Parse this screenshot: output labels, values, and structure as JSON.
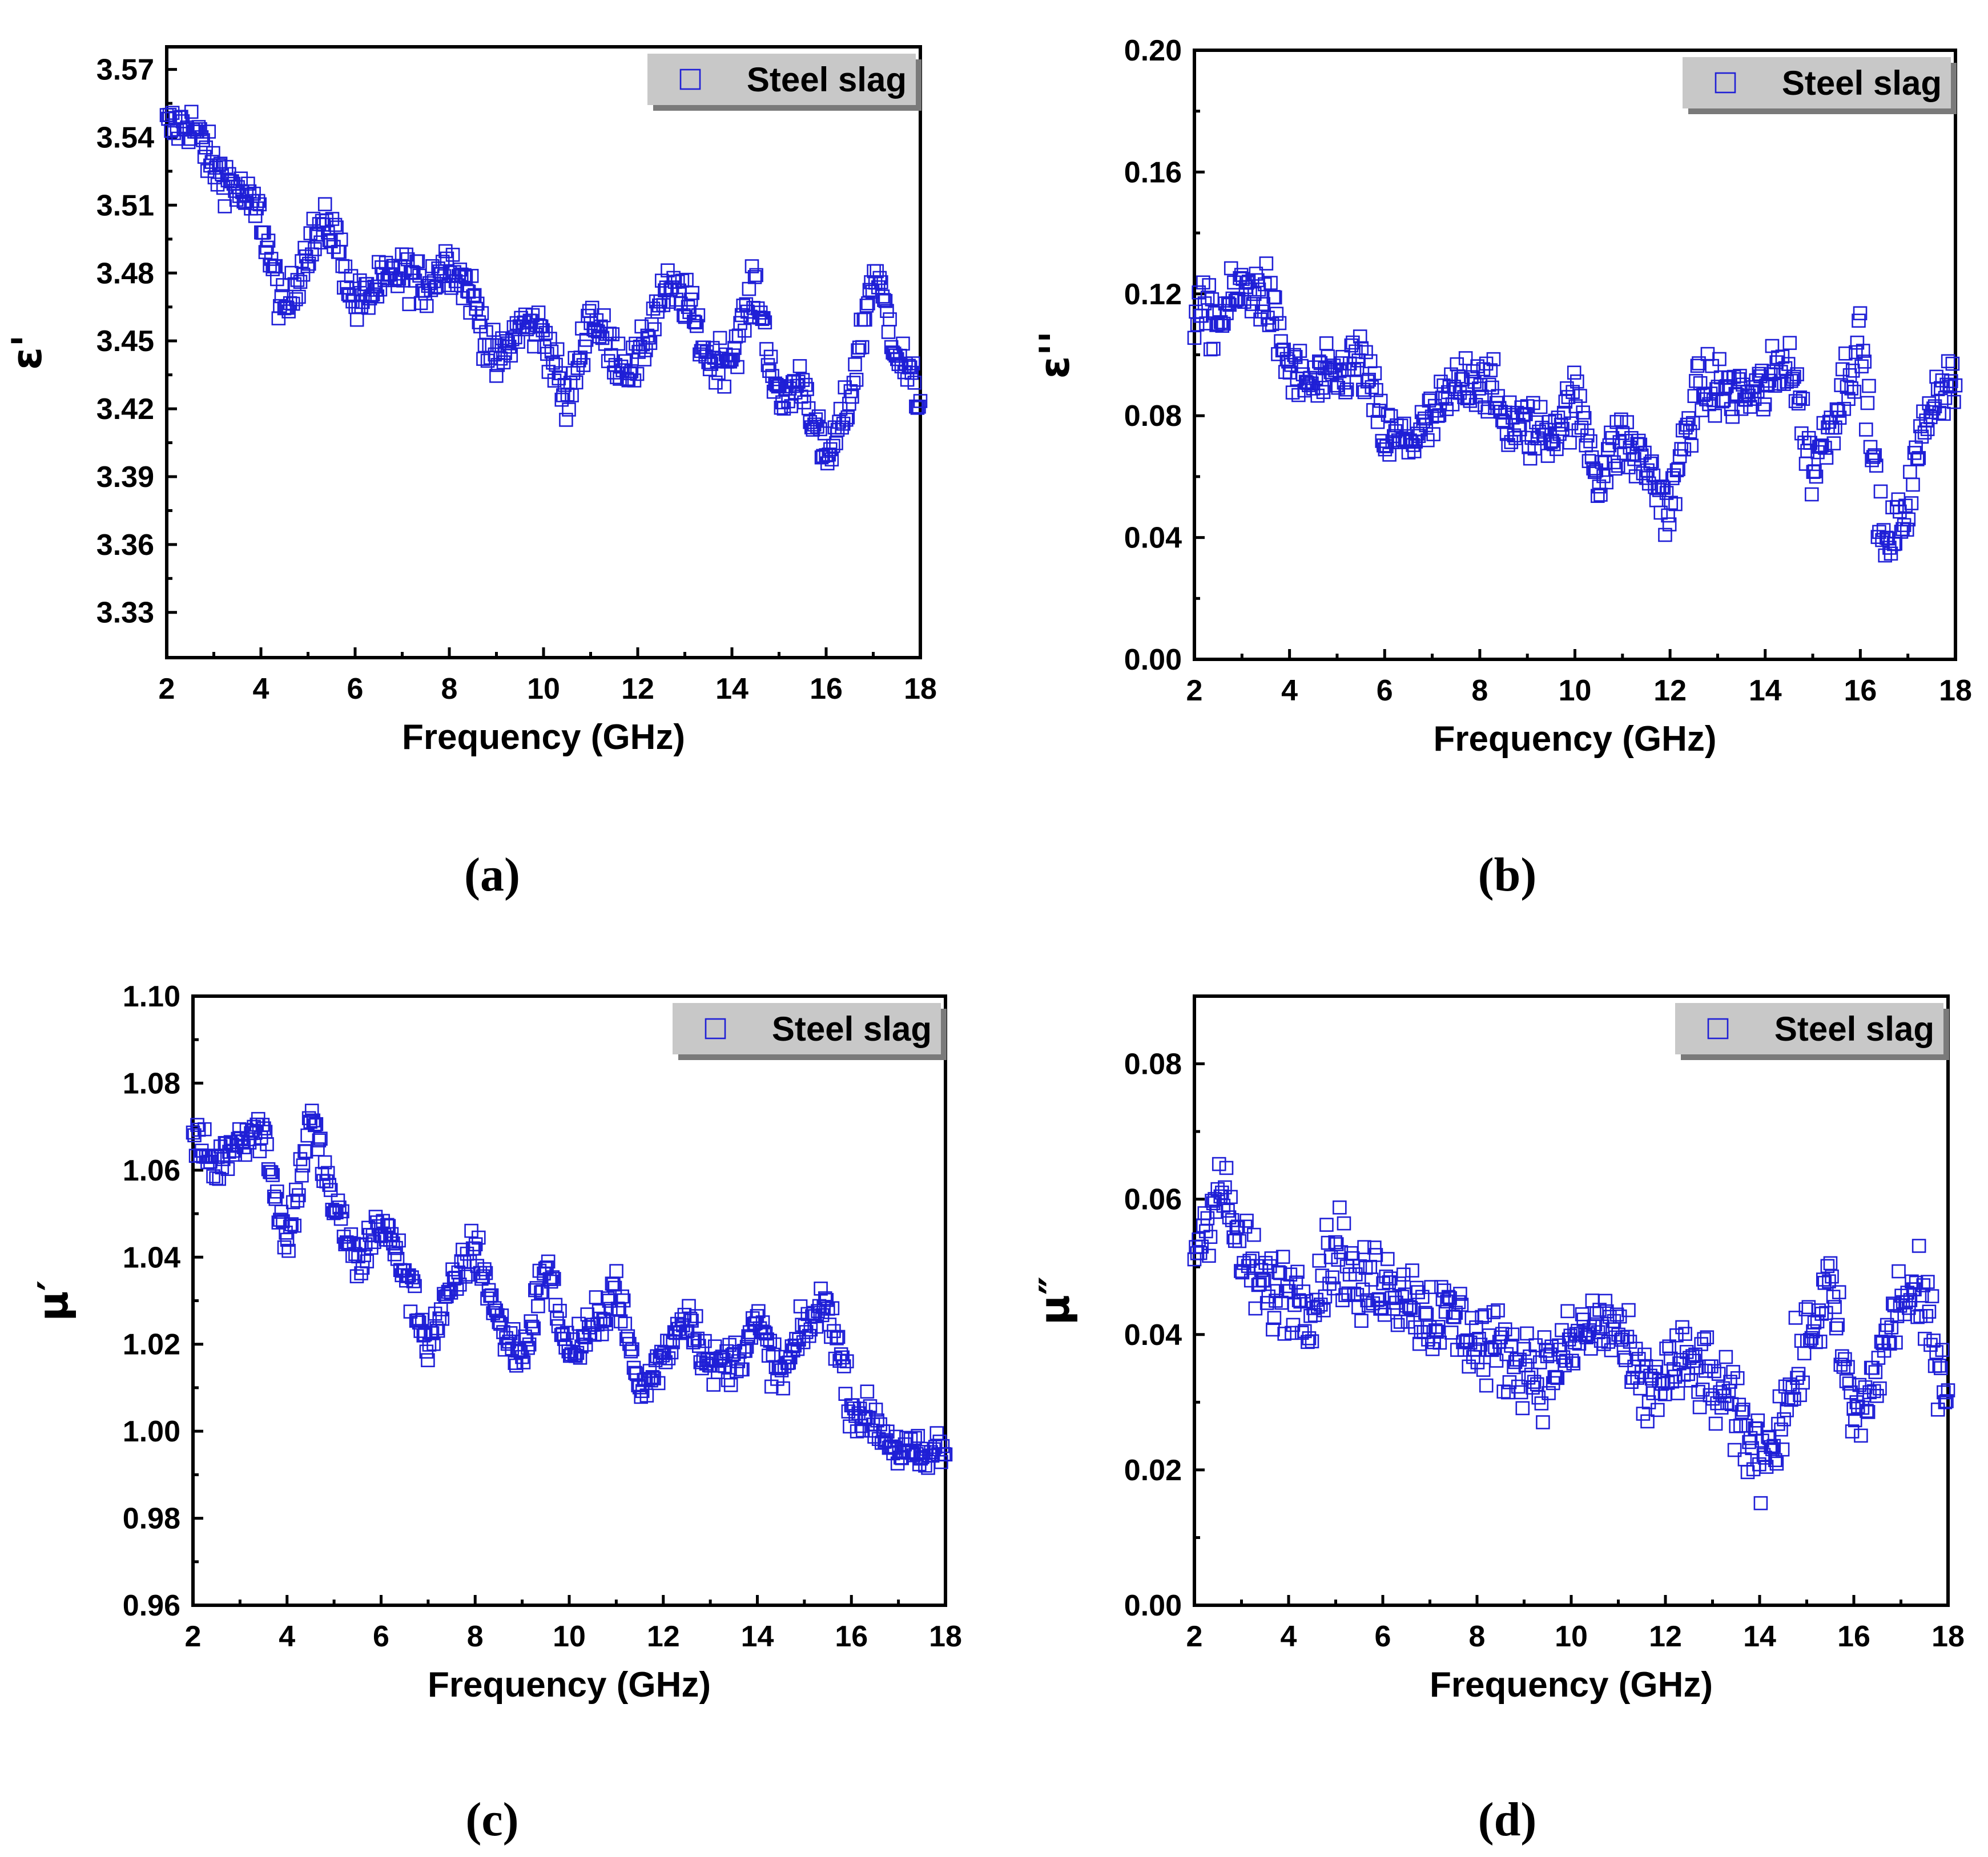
{
  "colors": {
    "marker": "#1f1fd6",
    "axis": "#000000",
    "legend_bg": "#c8c8c8"
  },
  "chart_data": [
    {
      "panel": "(a)",
      "type": "scatter",
      "marker": "hollow-square",
      "xlabel": "Frequency (GHz)",
      "ylabel": "ε'",
      "xlim": [
        2,
        18
      ],
      "ylim": [
        3.31,
        3.58
      ],
      "xticks": [
        2,
        4,
        6,
        8,
        10,
        12,
        14,
        16,
        18
      ],
      "xtick_labels": [
        "2",
        "4",
        "6",
        "8",
        "10",
        "12",
        "14",
        "16",
        "18"
      ],
      "yticks": [
        3.33,
        3.36,
        3.39,
        3.42,
        3.45,
        3.48,
        3.51,
        3.54,
        3.57
      ],
      "ytick_labels": [
        "3.33",
        "3.36",
        "3.39",
        "3.42",
        "3.45",
        "3.48",
        "3.51",
        "3.54",
        "3.57"
      ],
      "legend": "Steel slag",
      "legend_position": "top-right",
      "series": [
        {
          "name": "Steel slag",
          "x": [
            2.0,
            2.5,
            3.0,
            3.5,
            4.0,
            4.5,
            5.0,
            5.5,
            6.0,
            6.5,
            7.0,
            7.5,
            8.0,
            8.5,
            9.0,
            9.5,
            10.0,
            10.5,
            11.0,
            11.5,
            12.0,
            12.5,
            13.0,
            13.5,
            14.0,
            14.5,
            15.0,
            15.5,
            16.0,
            16.5,
            17.0,
            17.5,
            18.0
          ],
          "values": [
            3.55,
            3.545,
            3.52,
            3.515,
            3.51,
            3.465,
            3.49,
            3.495,
            3.465,
            3.48,
            3.485,
            3.47,
            3.48,
            3.47,
            3.445,
            3.46,
            3.45,
            3.415,
            3.465,
            3.45,
            3.44,
            3.465,
            3.465,
            3.445,
            3.45,
            3.475,
            3.415,
            3.43,
            3.4,
            3.43,
            3.48,
            3.44,
            3.42
          ],
          "spread": 0.01
        }
      ]
    },
    {
      "panel": "(b)",
      "type": "scatter",
      "marker": "hollow-square",
      "xlabel": "Frequency (GHz)",
      "ylabel": "ε''",
      "xlim": [
        2,
        18
      ],
      "ylim": [
        0,
        0.2
      ],
      "xticks": [
        2,
        4,
        6,
        8,
        10,
        12,
        14,
        16,
        18
      ],
      "xtick_labels": [
        "2",
        "4",
        "6",
        "8",
        "10",
        "12",
        "14",
        "16",
        "18"
      ],
      "yticks": [
        0.0,
        0.04,
        0.08,
        0.12,
        0.16,
        0.2
      ],
      "ytick_labels": [
        "0.00",
        "0.04",
        "0.08",
        "0.12",
        "0.16",
        "0.20"
      ],
      "legend": "Steel slag",
      "legend_position": "top-right",
      "series": [
        {
          "name": "Steel slag",
          "x": [
            2.0,
            2.5,
            3.0,
            3.5,
            4.0,
            4.5,
            5.0,
            5.5,
            6.0,
            6.5,
            7.0,
            7.5,
            8.0,
            8.5,
            9.0,
            9.5,
            10.0,
            10.5,
            11.0,
            11.5,
            12.0,
            12.5,
            13.0,
            13.5,
            14.0,
            14.5,
            15.0,
            15.5,
            16.0,
            16.5,
            17.0,
            17.5,
            18.0
          ],
          "values": [
            0.12,
            0.11,
            0.115,
            0.118,
            0.1,
            0.095,
            0.09,
            0.092,
            0.072,
            0.078,
            0.082,
            0.085,
            0.088,
            0.08,
            0.082,
            0.078,
            0.08,
            0.055,
            0.075,
            0.07,
            0.05,
            0.08,
            0.085,
            0.09,
            0.095,
            0.1,
            0.055,
            0.08,
            0.11,
            0.04,
            0.05,
            0.08,
            0.09
          ],
          "spread": 0.01
        }
      ]
    },
    {
      "panel": "(c)",
      "type": "scatter",
      "marker": "hollow-square",
      "xlabel": "Frequency (GHz)",
      "ylabel": "μ′",
      "xlim": [
        2,
        18
      ],
      "ylim": [
        0.96,
        1.1
      ],
      "xticks": [
        2,
        4,
        6,
        8,
        10,
        12,
        14,
        16,
        18
      ],
      "xtick_labels": [
        "2",
        "4",
        "6",
        "8",
        "10",
        "12",
        "14",
        "16",
        "18"
      ],
      "yticks": [
        0.96,
        0.98,
        1.0,
        1.02,
        1.04,
        1.06,
        1.08,
        1.1
      ],
      "ytick_labels": [
        "0.96",
        "0.98",
        "1.00",
        "1.02",
        "1.04",
        "1.06",
        "1.08",
        "1.10"
      ],
      "legend": "Steel slag",
      "legend_position": "top-right",
      "series": [
        {
          "name": "Steel slag",
          "x": [
            2.0,
            2.5,
            3.0,
            3.5,
            4.0,
            4.5,
            5.0,
            5.5,
            6.0,
            6.5,
            7.0,
            7.5,
            8.0,
            8.5,
            9.0,
            9.5,
            10.0,
            10.5,
            11.0,
            11.5,
            12.0,
            12.5,
            13.0,
            13.5,
            14.0,
            14.5,
            15.0,
            15.5,
            16.0,
            16.5,
            17.0,
            17.5,
            18.0
          ],
          "values": [
            1.07,
            1.06,
            1.065,
            1.068,
            1.045,
            1.075,
            1.05,
            1.035,
            1.048,
            1.04,
            1.022,
            1.03,
            1.04,
            1.025,
            1.02,
            1.04,
            1.015,
            1.02,
            1.035,
            1.012,
            1.018,
            1.025,
            1.012,
            1.018,
            1.028,
            1.012,
            1.02,
            1.028,
            1.008,
            1.005,
            0.995,
            0.99,
            0.995
          ],
          "spread": 0.005
        }
      ]
    },
    {
      "panel": "(d)",
      "type": "scatter",
      "marker": "hollow-square",
      "xlabel": "Frequency (GHz)",
      "ylabel": "μ″",
      "xlim": [
        2,
        18
      ],
      "ylim": [
        0,
        0.09
      ],
      "xticks": [
        2,
        4,
        6,
        8,
        10,
        12,
        14,
        16,
        18
      ],
      "xtick_labels": [
        "2",
        "4",
        "6",
        "8",
        "10",
        "12",
        "14",
        "16",
        "18"
      ],
      "yticks": [
        0.0,
        0.02,
        0.04,
        0.06,
        0.08
      ],
      "ytick_labels": [
        "0.00",
        "0.02",
        "0.04",
        "0.06",
        "0.08"
      ],
      "legend": "Steel slag",
      "legend_position": "top-right",
      "series": [
        {
          "name": "Steel slag",
          "x": [
            2.0,
            2.5,
            3.0,
            3.5,
            4.0,
            4.5,
            5.0,
            5.5,
            6.0,
            6.5,
            7.0,
            7.5,
            8.0,
            8.5,
            9.0,
            9.5,
            10.0,
            10.5,
            11.0,
            11.5,
            12.0,
            12.5,
            13.0,
            13.5,
            14.0,
            14.5,
            15.0,
            15.5,
            16.0,
            16.5,
            17.0,
            17.5,
            18.0
          ],
          "values": [
            0.055,
            0.062,
            0.048,
            0.045,
            0.05,
            0.048,
            0.052,
            0.042,
            0.048,
            0.05,
            0.045,
            0.04,
            0.035,
            0.038,
            0.04,
            0.036,
            0.035,
            0.038,
            0.042,
            0.035,
            0.035,
            0.032,
            0.03,
            0.03,
            0.026,
            0.028,
            0.035,
            0.045,
            0.03,
            0.038,
            0.045,
            0.04,
            0.03
          ],
          "spread": 0.006
        }
      ]
    }
  ]
}
